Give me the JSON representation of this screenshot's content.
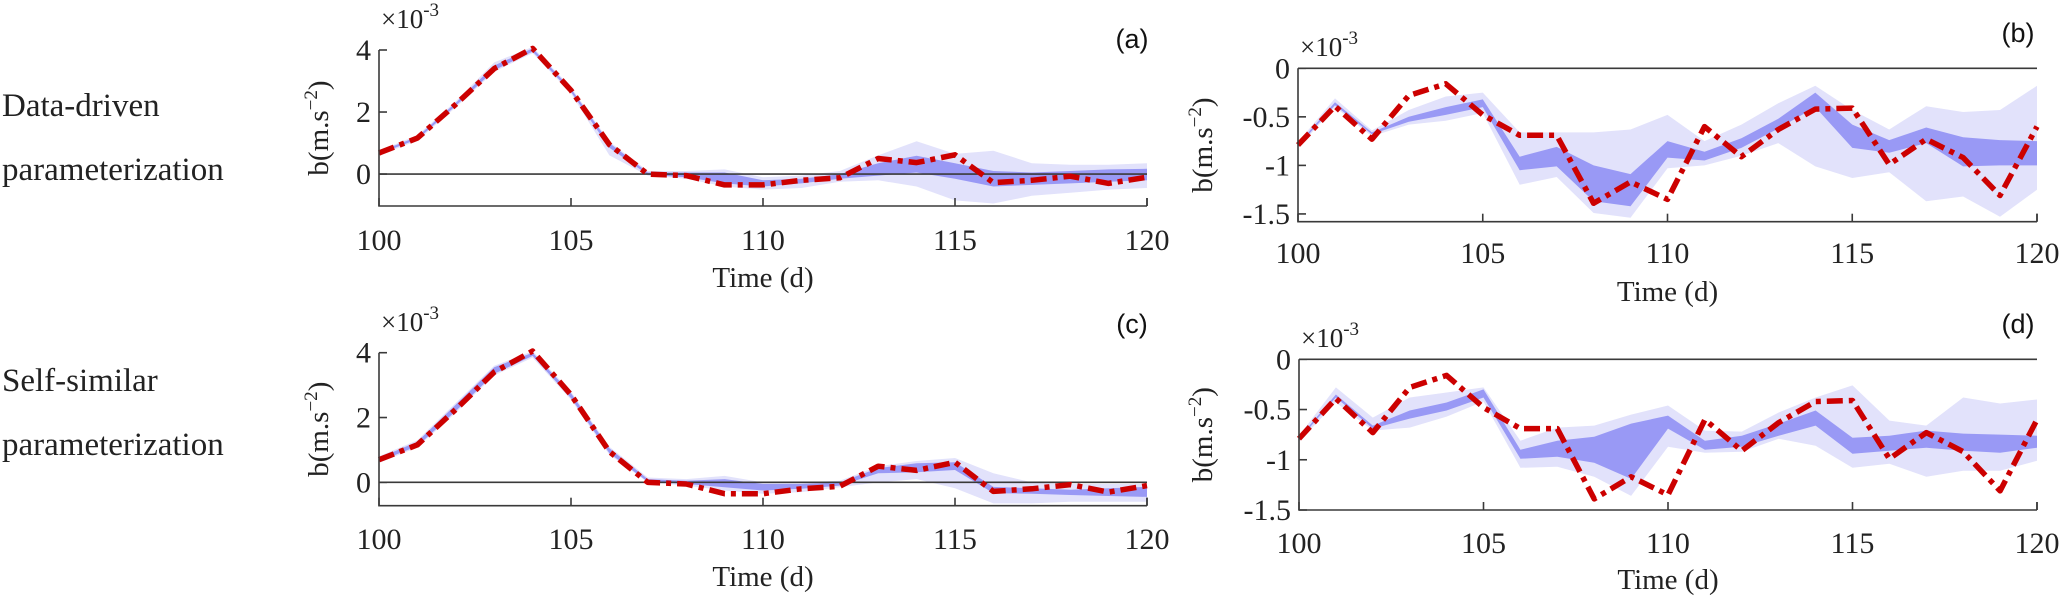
{
  "figure": {
    "row_labels": [
      {
        "line1": "Data-driven",
        "line2": "parameterization"
      },
      {
        "line1": "Self-similar",
        "line2": "parameterization"
      }
    ],
    "colors": {
      "truth": "#cc0000",
      "band_inner": "#9999f5",
      "band_outer": "#e2e2fb",
      "axis": "#3a3a3a"
    }
  },
  "chart_data": [
    {
      "id": "a",
      "panel_label": "(a)",
      "type": "area",
      "xlabel": "Time (d)",
      "ylabel": "b(m.s",
      "ylabel_exp": "−2",
      "ylabel_close": ")",
      "y_multiplier": "×10",
      "y_multiplier_exp": "-3",
      "xlim": [
        100,
        120
      ],
      "ylim": [
        -1.03,
        4.0
      ],
      "xticks": [
        100,
        105,
        110,
        115,
        120
      ],
      "xtick_labels": [
        "100",
        "105",
        "110",
        "115",
        "120"
      ],
      "yticks": [
        0,
        2,
        4
      ],
      "ytick_labels": [
        "0",
        "2",
        "4"
      ],
      "zero_line": true,
      "x": [
        100,
        101,
        102,
        103,
        104,
        105,
        106,
        107,
        108,
        109,
        110,
        111,
        112,
        113,
        114,
        115,
        116,
        117,
        118,
        119,
        120
      ],
      "series": [
        {
          "name": "ensemble outer spread",
          "kind": "band",
          "lower": [
            0.6,
            1.08,
            2.15,
            3.3,
            3.9,
            2.6,
            0.6,
            -0.05,
            -0.15,
            -0.4,
            -0.5,
            -0.45,
            -0.25,
            -0.2,
            -0.4,
            -0.85,
            -0.95,
            -0.7,
            -0.6,
            -0.5,
            -0.45
          ],
          "upper": [
            0.75,
            1.25,
            2.35,
            3.6,
            4.1,
            2.8,
            1.05,
            0.1,
            0.1,
            0.15,
            -0.1,
            -0.05,
            0.1,
            0.6,
            1.06,
            0.65,
            0.75,
            0.35,
            0.3,
            0.3,
            0.35
          ]
        },
        {
          "name": "ensemble inner spread",
          "kind": "band",
          "lower": [
            0.65,
            1.12,
            2.2,
            3.35,
            3.95,
            2.65,
            0.85,
            -0.02,
            -0.1,
            -0.3,
            -0.4,
            -0.3,
            -0.15,
            -0.05,
            0.05,
            -0.15,
            -0.4,
            -0.35,
            -0.3,
            -0.25,
            -0.2
          ],
          "upper": [
            0.72,
            1.2,
            2.3,
            3.5,
            4.05,
            2.75,
            1.0,
            0.05,
            0.05,
            0.05,
            -0.2,
            -0.15,
            0.0,
            0.35,
            0.59,
            0.35,
            0.1,
            0.05,
            0.1,
            0.15,
            0.17
          ]
        },
        {
          "name": "truth",
          "kind": "line",
          "values": [
            0.68,
            1.16,
            2.25,
            3.4,
            4.05,
            2.7,
            0.95,
            0.0,
            -0.05,
            -0.35,
            -0.35,
            -0.2,
            -0.12,
            0.5,
            0.37,
            0.62,
            -0.28,
            -0.2,
            -0.07,
            -0.3,
            -0.1
          ]
        }
      ]
    },
    {
      "id": "b",
      "panel_label": "(b)",
      "type": "area",
      "xlabel": "Time (d)",
      "ylabel": "b(m.s",
      "ylabel_exp": "−2",
      "ylabel_close": ")",
      "y_multiplier": "×10",
      "y_multiplier_exp": "-3",
      "xlim": [
        100,
        120
      ],
      "ylim": [
        -1.58,
        0
      ],
      "xticks": [
        100,
        105,
        110,
        115,
        120
      ],
      "xtick_labels": [
        "100",
        "105",
        "110",
        "115",
        "120"
      ],
      "yticks": [
        -1.5,
        -1,
        -0.5,
        0
      ],
      "ytick_labels": [
        "-1.5",
        "-1",
        "-0.5",
        "0"
      ],
      "zero_line": true,
      "x": [
        100,
        101,
        102,
        103,
        104,
        105,
        106,
        107,
        108,
        109,
        110,
        111,
        112,
        113,
        114,
        115,
        116,
        117,
        118,
        119,
        120
      ],
      "series": [
        {
          "name": "ensemble outer spread",
          "kind": "band",
          "lower": [
            -0.82,
            -0.4,
            -0.7,
            -0.58,
            -0.54,
            -0.46,
            -1.2,
            -1.12,
            -1.49,
            -1.54,
            -1.03,
            -1.0,
            -0.9,
            -0.77,
            -1.01,
            -1.13,
            -1.07,
            -1.37,
            -1.32,
            -1.53,
            -1.25
          ],
          "upper": [
            -0.76,
            -0.31,
            -0.64,
            -0.43,
            -0.29,
            -0.25,
            -0.66,
            -0.66,
            -0.66,
            -0.63,
            -0.48,
            -0.75,
            -0.58,
            -0.36,
            -0.18,
            -0.43,
            -0.63,
            -0.39,
            -0.45,
            -0.43,
            -0.18
          ]
        },
        {
          "name": "ensemble inner spread",
          "kind": "band",
          "lower": [
            -0.8,
            -0.38,
            -0.68,
            -0.55,
            -0.48,
            -0.4,
            -1.05,
            -1.01,
            -1.37,
            -1.42,
            -0.92,
            -0.95,
            -0.82,
            -0.62,
            -0.4,
            -0.82,
            -0.87,
            -0.77,
            -1.01,
            -1.0,
            -1.0
          ],
          "upper": [
            -0.78,
            -0.35,
            -0.66,
            -0.5,
            -0.4,
            -0.32,
            -0.91,
            -0.81,
            -1.0,
            -1.09,
            -0.75,
            -0.86,
            -0.72,
            -0.52,
            -0.25,
            -0.58,
            -0.74,
            -0.61,
            -0.71,
            -0.74,
            -0.75
          ]
        },
        {
          "name": "truth",
          "kind": "line",
          "values": [
            -0.79,
            -0.39,
            -0.73,
            -0.28,
            -0.16,
            -0.48,
            -0.69,
            -0.69,
            -1.39,
            -1.17,
            -1.35,
            -0.6,
            -0.91,
            -0.63,
            -0.42,
            -0.41,
            -0.99,
            -0.73,
            -0.92,
            -1.31,
            -0.6
          ]
        }
      ]
    },
    {
      "id": "c",
      "panel_label": "(c)",
      "type": "area",
      "xlabel": "Time (d)",
      "ylabel": "b(m.s",
      "ylabel_exp": "−2",
      "ylabel_close": ")",
      "y_multiplier": "×10",
      "y_multiplier_exp": "-3",
      "xlim": [
        100,
        120
      ],
      "ylim": [
        -0.72,
        4.0
      ],
      "xticks": [
        100,
        105,
        110,
        115,
        120
      ],
      "xtick_labels": [
        "100",
        "105",
        "110",
        "115",
        "120"
      ],
      "yticks": [
        0,
        2,
        4
      ],
      "ytick_labels": [
        "0",
        "2",
        "4"
      ],
      "zero_line": true,
      "x": [
        100,
        101,
        102,
        103,
        104,
        105,
        106,
        107,
        108,
        109,
        110,
        111,
        112,
        113,
        114,
        115,
        116,
        117,
        118,
        119,
        120
      ],
      "series": [
        {
          "name": "ensemble outer spread",
          "kind": "band",
          "lower": [
            0.6,
            1.08,
            2.15,
            3.3,
            3.85,
            2.55,
            0.85,
            0.0,
            -0.1,
            -0.25,
            -0.35,
            -0.3,
            -0.15,
            0.0,
            0.1,
            -0.18,
            -0.65,
            -0.65,
            -0.6,
            -0.6,
            -0.6
          ],
          "upper": [
            0.8,
            1.3,
            2.45,
            3.6,
            4.05,
            2.8,
            1.1,
            0.15,
            0.1,
            0.2,
            0.0,
            0.0,
            0.05,
            0.5,
            0.66,
            0.75,
            0.28,
            0.0,
            -0.05,
            -0.05,
            -0.05
          ]
        },
        {
          "name": "ensemble inner spread",
          "kind": "band",
          "lower": [
            0.65,
            1.12,
            2.2,
            3.35,
            3.9,
            2.6,
            0.9,
            0.02,
            -0.05,
            -0.15,
            -0.25,
            -0.2,
            -0.1,
            0.28,
            0.31,
            0.38,
            -0.33,
            -0.35,
            -0.39,
            -0.42,
            -0.45
          ],
          "upper": [
            0.75,
            1.25,
            2.4,
            3.55,
            4.0,
            2.75,
            1.05,
            0.1,
            0.05,
            0.1,
            -0.05,
            -0.05,
            0.0,
            0.44,
            0.59,
            0.62,
            -0.14,
            -0.18,
            -0.23,
            -0.18,
            -0.14
          ]
        },
        {
          "name": "truth",
          "kind": "line",
          "values": [
            0.7,
            1.16,
            2.25,
            3.4,
            4.05,
            2.7,
            0.95,
            0.0,
            -0.05,
            -0.35,
            -0.35,
            -0.2,
            -0.12,
            0.5,
            0.37,
            0.62,
            -0.28,
            -0.2,
            -0.07,
            -0.3,
            -0.1
          ]
        }
      ]
    },
    {
      "id": "d",
      "panel_label": "(d)",
      "type": "area",
      "xlabel": "Time (d)",
      "ylabel": "b(m.s",
      "ylabel_exp": "−2",
      "ylabel_close": ")",
      "y_multiplier": "×10",
      "y_multiplier_exp": "-3",
      "xlim": [
        100,
        120
      ],
      "ylim": [
        -1.5,
        0
      ],
      "xticks": [
        100,
        105,
        110,
        115,
        120
      ],
      "xtick_labels": [
        "100",
        "105",
        "110",
        "115",
        "120"
      ],
      "yticks": [
        -1.5,
        -1,
        -0.5,
        0
      ],
      "ytick_labels": [
        "-1.5",
        "-1",
        "-0.5",
        "0"
      ],
      "zero_line": true,
      "x": [
        100,
        101,
        102,
        103,
        104,
        105,
        106,
        107,
        108,
        109,
        110,
        111,
        112,
        113,
        114,
        115,
        116,
        117,
        118,
        119,
        120
      ],
      "series": [
        {
          "name": "ensemble outer spread",
          "kind": "band",
          "lower": [
            -0.82,
            -0.43,
            -0.71,
            -0.68,
            -0.57,
            -0.42,
            -1.08,
            -1.07,
            -1.17,
            -1.36,
            -0.87,
            -0.93,
            -0.92,
            -0.79,
            -0.86,
            -1.08,
            -1.04,
            -1.17,
            -1.11,
            -1.11,
            -1.01
          ],
          "upper": [
            -0.76,
            -0.28,
            -0.58,
            -0.38,
            -0.33,
            -0.28,
            -0.81,
            -0.68,
            -0.66,
            -0.55,
            -0.46,
            -0.71,
            -0.72,
            -0.53,
            -0.38,
            -0.26,
            -0.61,
            -0.66,
            -0.38,
            -0.44,
            -0.4
          ]
        },
        {
          "name": "ensemble inner spread",
          "kind": "band",
          "lower": [
            -0.8,
            -0.38,
            -0.69,
            -0.59,
            -0.51,
            -0.38,
            -0.99,
            -0.97,
            -1.03,
            -1.19,
            -0.69,
            -0.9,
            -0.87,
            -0.76,
            -0.66,
            -0.94,
            -0.91,
            -0.88,
            -0.91,
            -0.93,
            -0.88
          ],
          "upper": [
            -0.78,
            -0.35,
            -0.66,
            -0.51,
            -0.43,
            -0.3,
            -0.9,
            -0.81,
            -0.77,
            -0.64,
            -0.56,
            -0.81,
            -0.76,
            -0.64,
            -0.51,
            -0.78,
            -0.76,
            -0.71,
            -0.74,
            -0.75,
            -0.76
          ]
        },
        {
          "name": "truth",
          "kind": "line",
          "values": [
            -0.79,
            -0.39,
            -0.73,
            -0.28,
            -0.16,
            -0.48,
            -0.69,
            -0.69,
            -1.39,
            -1.17,
            -1.35,
            -0.6,
            -0.91,
            -0.63,
            -0.42,
            -0.41,
            -0.99,
            -0.73,
            -0.92,
            -1.31,
            -0.6
          ]
        }
      ]
    }
  ]
}
